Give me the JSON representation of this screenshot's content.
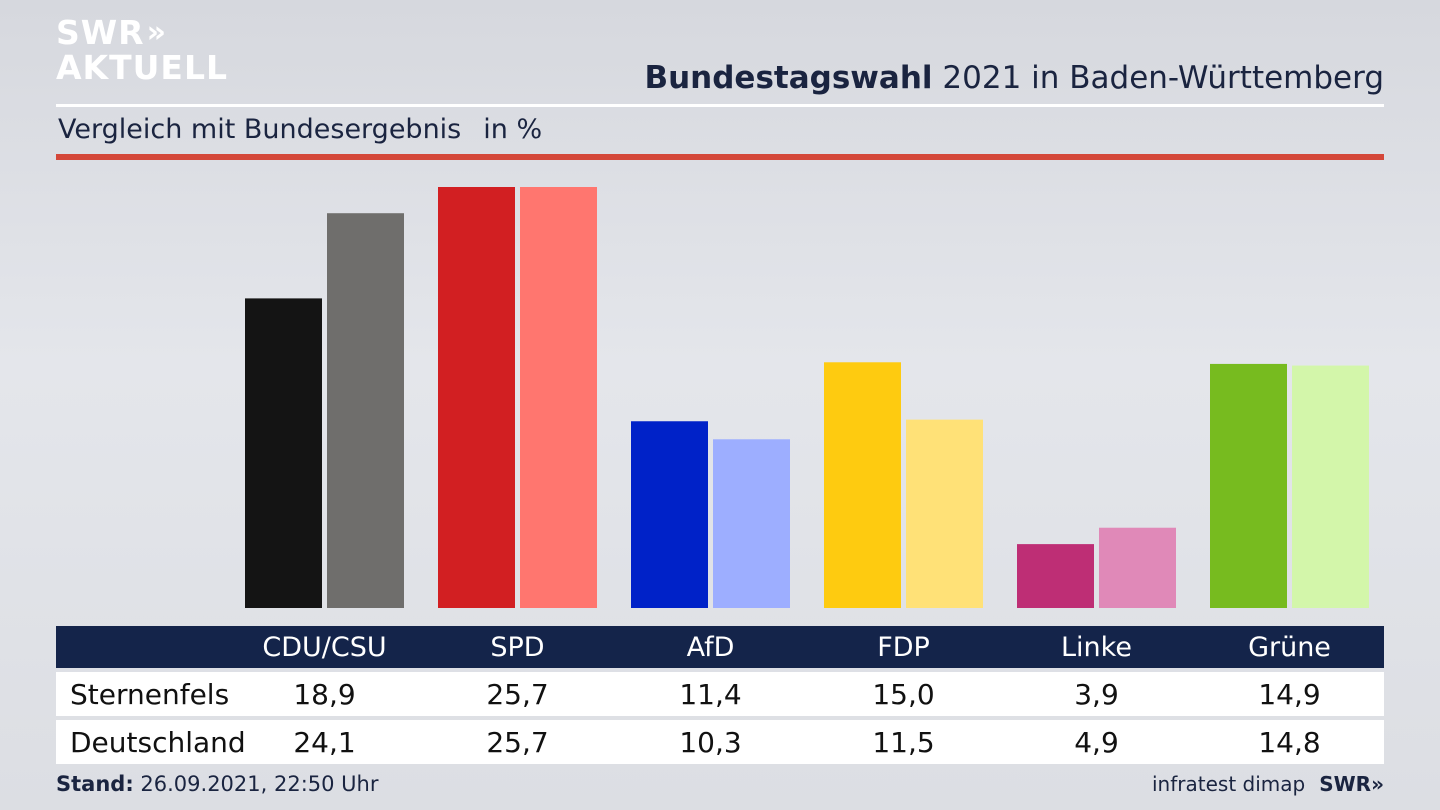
{
  "logo": {
    "line1": "SWR",
    "line1_chevrons": "»",
    "line2": "AKTUELL"
  },
  "header": {
    "title_bold": "Bundestagswahl",
    "title_rest": " 2021 in Baden-Württemberg",
    "subtitle": "Vergleich mit Bundesergebnis",
    "unit": "in %"
  },
  "chart_data": {
    "type": "bar",
    "categories": [
      "CDU/CSU",
      "SPD",
      "AfD",
      "FDP",
      "Linke",
      "Grüne"
    ],
    "series": [
      {
        "name": "Sternenfels",
        "values": [
          18.9,
          25.7,
          11.4,
          15.0,
          3.9,
          14.9
        ],
        "labels": [
          "18,9",
          "25,7",
          "11,4",
          "15,0",
          "3,9",
          "14,9"
        ],
        "colors": [
          "#141414",
          "#d21f22",
          "#0022c8",
          "#fecb10",
          "#be2e75",
          "#77bb1f"
        ]
      },
      {
        "name": "Deutschland",
        "values": [
          24.1,
          25.7,
          10.3,
          11.5,
          4.9,
          14.8
        ],
        "labels": [
          "24,1",
          "25,7",
          "10,3",
          "11,5",
          "4,9",
          "14,8"
        ],
        "colors": [
          "#6f6e6c",
          "#ff766f",
          "#9daeff",
          "#ffe177",
          "#e089b8",
          "#d3f6aa"
        ]
      }
    ],
    "ylim": [
      0,
      26
    ]
  },
  "footer": {
    "stand_label": "Stand:",
    "stand_value": " 26.09.2021, 22:50 Uhr",
    "source": "infratest dimap",
    "brand": "SWR",
    "brand_chevrons": "»"
  }
}
